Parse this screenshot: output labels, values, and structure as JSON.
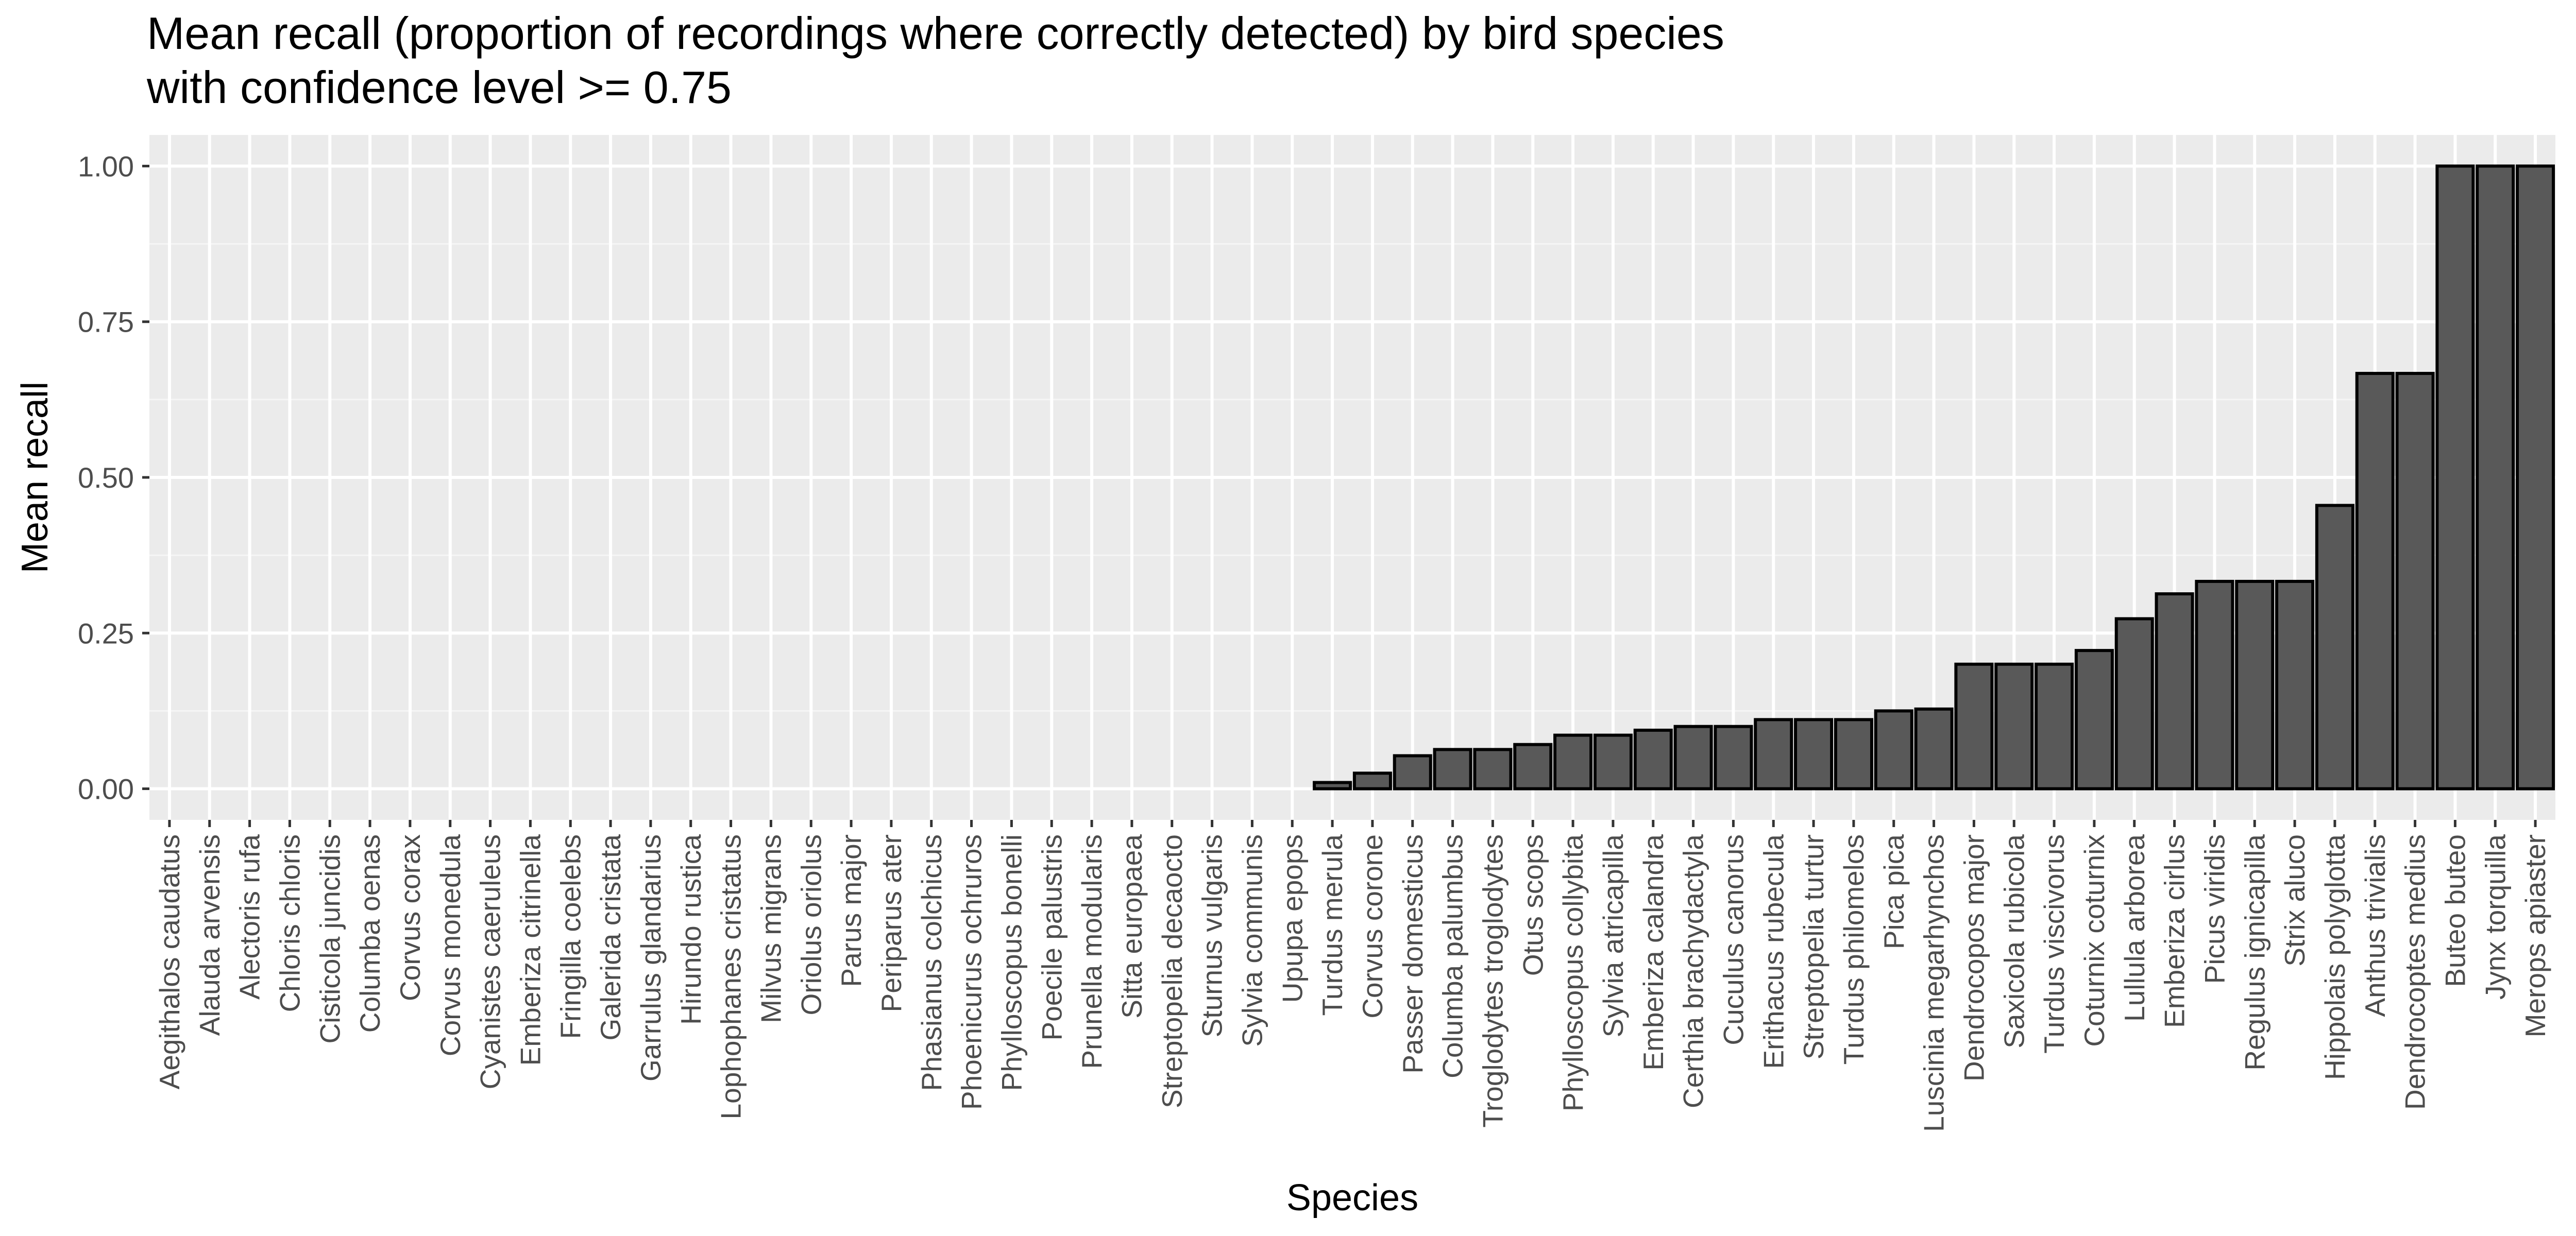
{
  "chart_data": {
    "type": "bar",
    "title": "Mean recall (proportion of recordings where correctly detected) by bird species",
    "subtitle": "with confidence level >= 0.75",
    "xlabel": "Species",
    "ylabel": "Mean recall",
    "ylim": [
      -0.05,
      1.05
    ],
    "yticks": [
      "0.00",
      "0.25",
      "0.50",
      "0.75",
      "1.00"
    ],
    "grid": true,
    "legend": "none",
    "colors": {
      "panel": "#ebebeb",
      "grid_major": "#ffffff",
      "grid_minor": "#f5f5f5",
      "bar_fill": "#595959",
      "bar_stroke": "#000000",
      "tick": "#333333"
    },
    "categories": [
      "Aegithalos caudatus",
      "Alauda arvensis",
      "Alectoris rufa",
      "Chloris chloris",
      "Cisticola juncidis",
      "Columba oenas",
      "Corvus corax",
      "Corvus monedula",
      "Cyanistes caeruleus",
      "Emberiza citrinella",
      "Fringilla coelebs",
      "Galerida cristata",
      "Garrulus glandarius",
      "Hirundo rustica",
      "Lophophanes cristatus",
      "Milvus migrans",
      "Oriolus oriolus",
      "Parus major",
      "Periparus ater",
      "Phasianus colchicus",
      "Phoenicurus ochruros",
      "Phylloscopus bonelli",
      "Poecile palustris",
      "Prunella modularis",
      "Sitta europaea",
      "Streptopelia decaocto",
      "Sturnus vulgaris",
      "Sylvia communis",
      "Upupa epops",
      "Turdus merula",
      "Corvus corone",
      "Passer domesticus",
      "Columba palumbus",
      "Troglodytes troglodytes",
      "Otus scops",
      "Phylloscopus collybita",
      "Sylvia atricapilla",
      "Emberiza calandra",
      "Certhia brachydactyla",
      "Cuculus canorus",
      "Erithacus rubecula",
      "Streptopelia turtur",
      "Turdus philomelos",
      "Pica pica",
      "Luscinia megarhynchos",
      "Dendrocopos major",
      "Saxicola rubicola",
      "Turdus viscivorus",
      "Coturnix coturnix",
      "Lullula arborea",
      "Emberiza cirlus",
      "Picus viridis",
      "Regulus ignicapilla",
      "Strix aluco",
      "Hippolais polyglotta",
      "Anthus trivialis",
      "Dendrocoptes medius",
      "Buteo buteo",
      "Jynx torquilla",
      "Merops apiaster"
    ],
    "values": [
      0,
      0,
      0,
      0,
      0,
      0,
      0,
      0,
      0,
      0,
      0,
      0,
      0,
      0,
      0,
      0,
      0,
      0,
      0,
      0,
      0,
      0,
      0,
      0,
      0,
      0,
      0,
      0,
      0,
      0.01,
      0.025,
      0.053,
      0.063,
      0.063,
      0.071,
      0.086,
      0.086,
      0.094,
      0.1,
      0.1,
      0.111,
      0.111,
      0.111,
      0.125,
      0.128,
      0.2,
      0.2,
      0.2,
      0.222,
      0.273,
      0.313,
      0.333,
      0.333,
      0.333,
      0.455,
      0.667,
      0.667,
      1.0,
      1.0,
      1.0
    ]
  }
}
